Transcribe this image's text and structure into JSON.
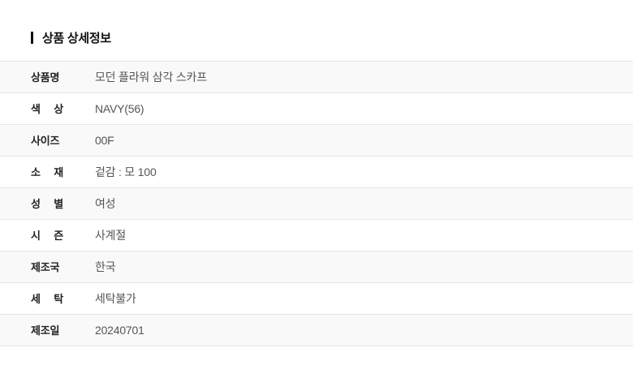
{
  "header": {
    "title": "상품 상세정보"
  },
  "accent": {
    "title_bar_color": "#111111",
    "alt_row_bg": "#f9f9f9",
    "divider_color": "#e5e5e5"
  },
  "table": {
    "rows": [
      {
        "label": "상품명",
        "value": "모던 플라워 삼각 스카프"
      },
      {
        "label": "색 상",
        "value": "NAVY(56)"
      },
      {
        "label": "사이즈",
        "value": "00F"
      },
      {
        "label": "소 재",
        "value": "겉감 : 모 100"
      },
      {
        "label": "성 별",
        "value": "여성"
      },
      {
        "label": "시 즌",
        "value": "사계절"
      },
      {
        "label": "제조국",
        "value": "한국"
      },
      {
        "label": "세 탁",
        "value": "세탁불가"
      },
      {
        "label": "제조일",
        "value": "20240701"
      }
    ]
  }
}
